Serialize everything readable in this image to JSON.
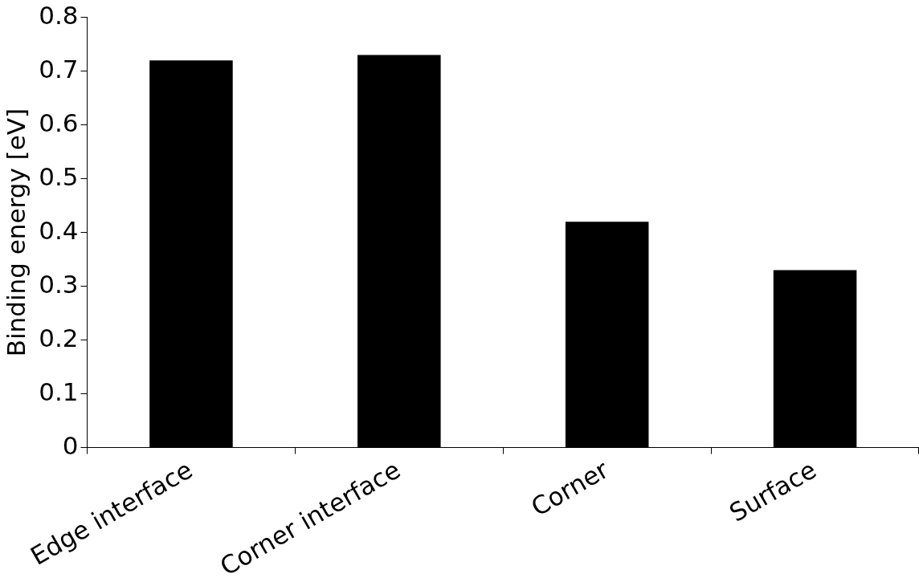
{
  "chart_data": {
    "type": "bar",
    "ylabel": "Binding energy [eV]",
    "categories": [
      "Edge interface",
      "Corner interface",
      "Corner",
      "Surface"
    ],
    "values": [
      0.72,
      0.73,
      0.42,
      0.33
    ],
    "color": "#000000",
    "ylim": [
      0,
      0.8
    ],
    "yticks": [
      0,
      0.1,
      0.2,
      0.3,
      0.4,
      0.5,
      0.6,
      0.7,
      0.8
    ],
    "grid": false,
    "legend": false
  }
}
